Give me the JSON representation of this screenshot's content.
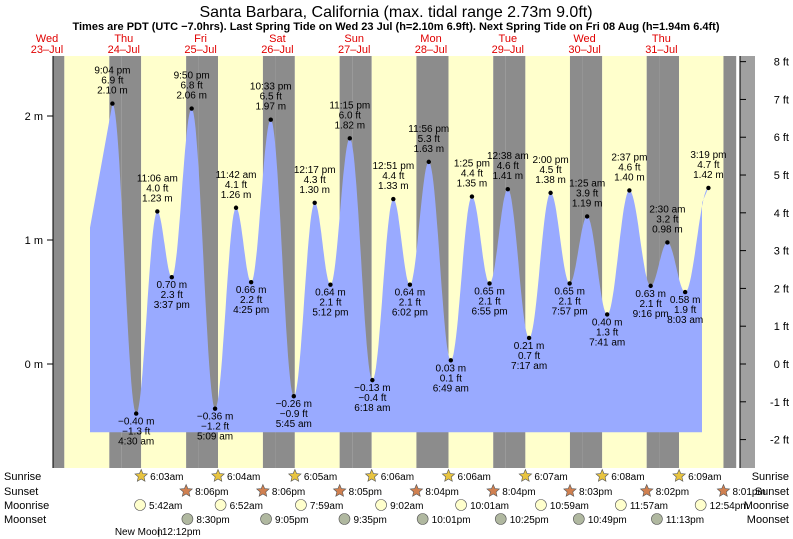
{
  "title": "Santa Barbara, California (max. tidal range 2.73m 9.0ft)",
  "subtitle": "Times are PDT (UTC −7.0hrs). Last Spring Tide on Wed 23 Jul (h=2.10m 6.9ft). Next Spring Tide on Fri 08 Aug (h=1.94m 6.4ft)",
  "chart_data": {
    "type": "area",
    "days": [
      {
        "dow": "Wed",
        "date": "23–Jul"
      },
      {
        "dow": "Thu",
        "date": "24–Jul"
      },
      {
        "dow": "Fri",
        "date": "25–Jul"
      },
      {
        "dow": "Sat",
        "date": "26–Jul"
      },
      {
        "dow": "Sun",
        "date": "27–Jul"
      },
      {
        "dow": "Mon",
        "date": "28–Jul"
      },
      {
        "dow": "Tue",
        "date": "29–Jul"
      },
      {
        "dow": "Wed",
        "date": "30–Jul"
      },
      {
        "dow": "Thu",
        "date": "31–Jul"
      }
    ],
    "start_date": "2025-07-23",
    "start_weekday_index": 0,
    "y_axis_left": {
      "unit": "m",
      "ticks": [
        {
          "v": 0,
          "label": "0 m"
        },
        {
          "v": 1,
          "label": "1 m"
        },
        {
          "v": 2,
          "label": "2 m"
        }
      ]
    },
    "y_axis_right": {
      "unit": "ft",
      "ticks": [
        "-2 ft",
        "-1 ft",
        "0 ft",
        "1 ft",
        "2 ft",
        "3 ft",
        "4 ft",
        "5 ft",
        "6 ft",
        "7 ft",
        "8 ft"
      ]
    },
    "ylim_m": [
      -0.8,
      2.45
    ],
    "tides": [
      {
        "time": "9:04 pm",
        "ft": "6.9 ft",
        "m": "2.10 m",
        "day": 0,
        "hour": 21.07,
        "h": 2.1,
        "type": "high"
      },
      {
        "time": "4:30 am",
        "ft": "−1.3 ft",
        "m": "−0.40 m",
        "day": 1,
        "hour": 4.5,
        "h": -0.4,
        "type": "low"
      },
      {
        "time": "11:06 am",
        "ft": "4.0 ft",
        "m": "1.23 m",
        "day": 1,
        "hour": 11.1,
        "h": 1.23,
        "type": "high"
      },
      {
        "time": "3:37 pm",
        "ft": "2.3 ft",
        "m": "0.70 m",
        "day": 1,
        "hour": 15.62,
        "h": 0.7,
        "type": "low"
      },
      {
        "time": "9:50 pm",
        "ft": "6.8 ft",
        "m": "2.06 m",
        "day": 1,
        "hour": 21.83,
        "h": 2.06,
        "type": "high"
      },
      {
        "time": "5:09 am",
        "ft": "−1.2 ft",
        "m": "−0.36 m",
        "day": 2,
        "hour": 5.15,
        "h": -0.36,
        "type": "low"
      },
      {
        "time": "11:42 am",
        "ft": "4.1 ft",
        "m": "1.26 m",
        "day": 2,
        "hour": 11.7,
        "h": 1.26,
        "type": "high"
      },
      {
        "time": "4:25 pm",
        "ft": "2.2 ft",
        "m": "0.66 m",
        "day": 2,
        "hour": 16.42,
        "h": 0.66,
        "type": "low"
      },
      {
        "time": "10:33 pm",
        "ft": "6.5 ft",
        "m": "1.97 m",
        "day": 2,
        "hour": 22.55,
        "h": 1.97,
        "type": "high"
      },
      {
        "time": "5:45 am",
        "ft": "−0.9 ft",
        "m": "−0.26 m",
        "day": 3,
        "hour": 5.75,
        "h": -0.26,
        "type": "low"
      },
      {
        "time": "12:17 pm",
        "ft": "4.3 ft",
        "m": "1.30 m",
        "day": 3,
        "hour": 12.28,
        "h": 1.3,
        "type": "high"
      },
      {
        "time": "5:12 pm",
        "ft": "2.1 ft",
        "m": "0.64 m",
        "day": 3,
        "hour": 17.2,
        "h": 0.64,
        "type": "low"
      },
      {
        "time": "11:15 pm",
        "ft": "6.0 ft",
        "m": "1.82 m",
        "day": 3,
        "hour": 23.25,
        "h": 1.82,
        "type": "high"
      },
      {
        "time": "6:18 am",
        "ft": "−0.4 ft",
        "m": "−0.13 m",
        "day": 4,
        "hour": 6.3,
        "h": -0.13,
        "type": "low"
      },
      {
        "time": "12:51 pm",
        "ft": "4.4 ft",
        "m": "1.33 m",
        "day": 4,
        "hour": 12.85,
        "h": 1.33,
        "type": "high"
      },
      {
        "time": "6:02 pm",
        "ft": "2.1 ft",
        "m": "0.64 m",
        "day": 4,
        "hour": 18.03,
        "h": 0.64,
        "type": "low"
      },
      {
        "time": "11:56 pm",
        "ft": "5.3 ft",
        "m": "1.63 m",
        "day": 4,
        "hour": 23.93,
        "h": 1.63,
        "type": "high"
      },
      {
        "time": "6:49 am",
        "ft": "0.1 ft",
        "m": "0.03 m",
        "day": 5,
        "hour": 6.82,
        "h": 0.03,
        "type": "low"
      },
      {
        "time": "1:25 pm",
        "ft": "4.4 ft",
        "m": "1.35 m",
        "day": 5,
        "hour": 13.42,
        "h": 1.35,
        "type": "high"
      },
      {
        "time": "6:55 pm",
        "ft": "2.1 ft",
        "m": "0.65 m",
        "day": 5,
        "hour": 18.92,
        "h": 0.65,
        "type": "low"
      },
      {
        "time": "12:38 am",
        "ft": "4.6 ft",
        "m": "1.41 m",
        "day": 6,
        "hour": 0.63,
        "h": 1.41,
        "type": "high"
      },
      {
        "time": "7:17 am",
        "ft": "0.7 ft",
        "m": "0.21 m",
        "day": 6,
        "hour": 7.28,
        "h": 0.21,
        "type": "low"
      },
      {
        "time": "2:00 pm",
        "ft": "4.5 ft",
        "m": "1.38 m",
        "day": 6,
        "hour": 14.0,
        "h": 1.38,
        "type": "high"
      },
      {
        "time": "7:57 pm",
        "ft": "2.1 ft",
        "m": "0.65 m",
        "day": 6,
        "hour": 19.95,
        "h": 0.65,
        "type": "low"
      },
      {
        "time": "1:25 am",
        "ft": "3.9 ft",
        "m": "1.19 m",
        "day": 7,
        "hour": 1.42,
        "h": 1.19,
        "type": "high"
      },
      {
        "time": "7:41 am",
        "ft": "1.3 ft",
        "m": "0.40 m",
        "day": 7,
        "hour": 7.68,
        "h": 0.4,
        "type": "low"
      },
      {
        "time": "2:37 pm",
        "ft": "4.6 ft",
        "m": "1.40 m",
        "day": 7,
        "hour": 14.62,
        "h": 1.4,
        "type": "high"
      },
      {
        "time": "9:16 pm",
        "ft": "2.1 ft",
        "m": "0.63 m",
        "day": 7,
        "hour": 21.27,
        "h": 0.63,
        "type": "low"
      },
      {
        "time": "2:30 am",
        "ft": "3.2 ft",
        "m": "0.98 m",
        "day": 8,
        "hour": 2.5,
        "h": 0.98,
        "type": "high"
      },
      {
        "time": "8:03 am",
        "ft": "1.9 ft",
        "m": "0.58 m",
        "day": 8,
        "hour": 8.05,
        "h": 0.58,
        "type": "low"
      },
      {
        "time": "3:19 pm",
        "ft": "4.7 ft",
        "m": "1.42 m",
        "day": 8,
        "hour": 15.32,
        "h": 1.42,
        "type": "high"
      }
    ],
    "sunrise": [
      {
        "day": 1,
        "hour": 6.05,
        "text": "6:03am"
      },
      {
        "day": 2,
        "hour": 6.07,
        "text": "6:04am"
      },
      {
        "day": 3,
        "hour": 6.08,
        "text": "6:05am"
      },
      {
        "day": 4,
        "hour": 6.1,
        "text": "6:06am"
      },
      {
        "day": 5,
        "hour": 6.1,
        "text": "6:06am"
      },
      {
        "day": 6,
        "hour": 6.12,
        "text": "6:07am"
      },
      {
        "day": 7,
        "hour": 6.13,
        "text": "6:08am"
      },
      {
        "day": 8,
        "hour": 6.15,
        "text": "6:09am"
      }
    ],
    "sunset": [
      {
        "day": 1,
        "hour": 20.1,
        "text": "8:06pm"
      },
      {
        "day": 2,
        "hour": 20.1,
        "text": "8:06pm"
      },
      {
        "day": 3,
        "hour": 20.08,
        "text": "8:05pm"
      },
      {
        "day": 4,
        "hour": 20.07,
        "text": "8:04pm"
      },
      {
        "day": 5,
        "hour": 20.07,
        "text": "8:04pm"
      },
      {
        "day": 6,
        "hour": 20.05,
        "text": "8:03pm"
      },
      {
        "day": 7,
        "hour": 20.03,
        "text": "8:02pm"
      },
      {
        "day": 8,
        "hour": 20.02,
        "text": "8:01pm"
      }
    ],
    "moonrise": [
      {
        "day": 1,
        "hour": 5.7,
        "text": "5:42am"
      },
      {
        "day": 2,
        "hour": 6.87,
        "text": "6:52am"
      },
      {
        "day": 3,
        "hour": 7.98,
        "text": "7:59am"
      },
      {
        "day": 4,
        "hour": 9.03,
        "text": "9:02am"
      },
      {
        "day": 5,
        "hour": 10.02,
        "text": "10:01am"
      },
      {
        "day": 6,
        "hour": 10.98,
        "text": "10:59am"
      },
      {
        "day": 7,
        "hour": 11.95,
        "text": "11:57am"
      },
      {
        "day": 8,
        "hour": 12.9,
        "text": "12:54pm"
      }
    ],
    "moonset": [
      {
        "day": 1,
        "hour": 20.5,
        "text": "8:30pm"
      },
      {
        "day": 2,
        "hour": 21.08,
        "text": "9:05pm"
      },
      {
        "day": 3,
        "hour": 21.58,
        "text": "9:35pm"
      },
      {
        "day": 4,
        "hour": 22.02,
        "text": "10:01pm"
      },
      {
        "day": 5,
        "hour": 22.42,
        "text": "10:25pm"
      },
      {
        "day": 6,
        "hour": 22.82,
        "text": "10:49pm"
      },
      {
        "day": 7,
        "hour": 23.22,
        "text": "11:13pm"
      }
    ],
    "moon_phase": {
      "day": 1,
      "hour": 12.2,
      "text": "New Moon",
      "time": "12:12pm"
    },
    "row_labels": {
      "sunrise": "Sunrise",
      "sunset": "Sunset",
      "moonrise": "Moonrise",
      "moonset": "Moonset"
    },
    "colors": {
      "day": "#ffffcc",
      "night": "#8c8c8c",
      "water": "#99aaff",
      "outside": "#a0a0a0",
      "day_label": "#e00000"
    }
  }
}
